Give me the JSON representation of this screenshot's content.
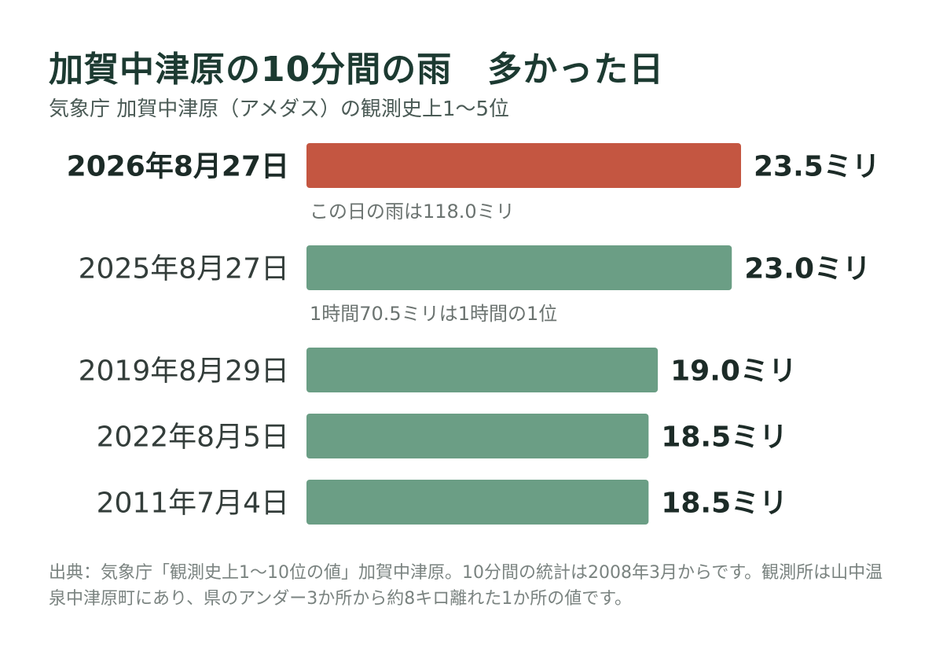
{
  "header": {
    "title": "加賀中津原の10分間の雨　多かった日",
    "subtitle": "気象庁 加賀中津原（アメダス）の観測史上1〜5位"
  },
  "footer": {
    "source": "出典：気象庁「観測史上1〜10位の値」加賀中津原。10分間の統計は2008年3月からです。観測所は山中温泉中津原町にあり、県のアンダー3か所から約8キロ離れた1か所の値です。"
  },
  "colors": {
    "highlight": "#c45641",
    "bar": "#6b9e85"
  },
  "chart_data": {
    "type": "bar",
    "orientation": "horizontal",
    "unit": "ミリ",
    "xlim": [
      0,
      23.5
    ],
    "grid": false,
    "legend": "none",
    "categories": [
      "2026年8月27日",
      "2025年8月27日",
      "2019年8月29日",
      "2022年8月5日",
      "2011年7月4日"
    ],
    "values": [
      23.5,
      23.0,
      19.0,
      18.5,
      18.5
    ],
    "value_labels": [
      "23.5ミリ",
      "23.0ミリ",
      "19.0ミリ",
      "18.5ミリ",
      "18.5ミリ"
    ],
    "highlight_index": 0,
    "annotations": [
      {
        "index": 0,
        "text": "この日の雨は118.0ミリ"
      },
      {
        "index": 1,
        "text": "1時間70.5ミリは1時間の1位"
      }
    ]
  }
}
